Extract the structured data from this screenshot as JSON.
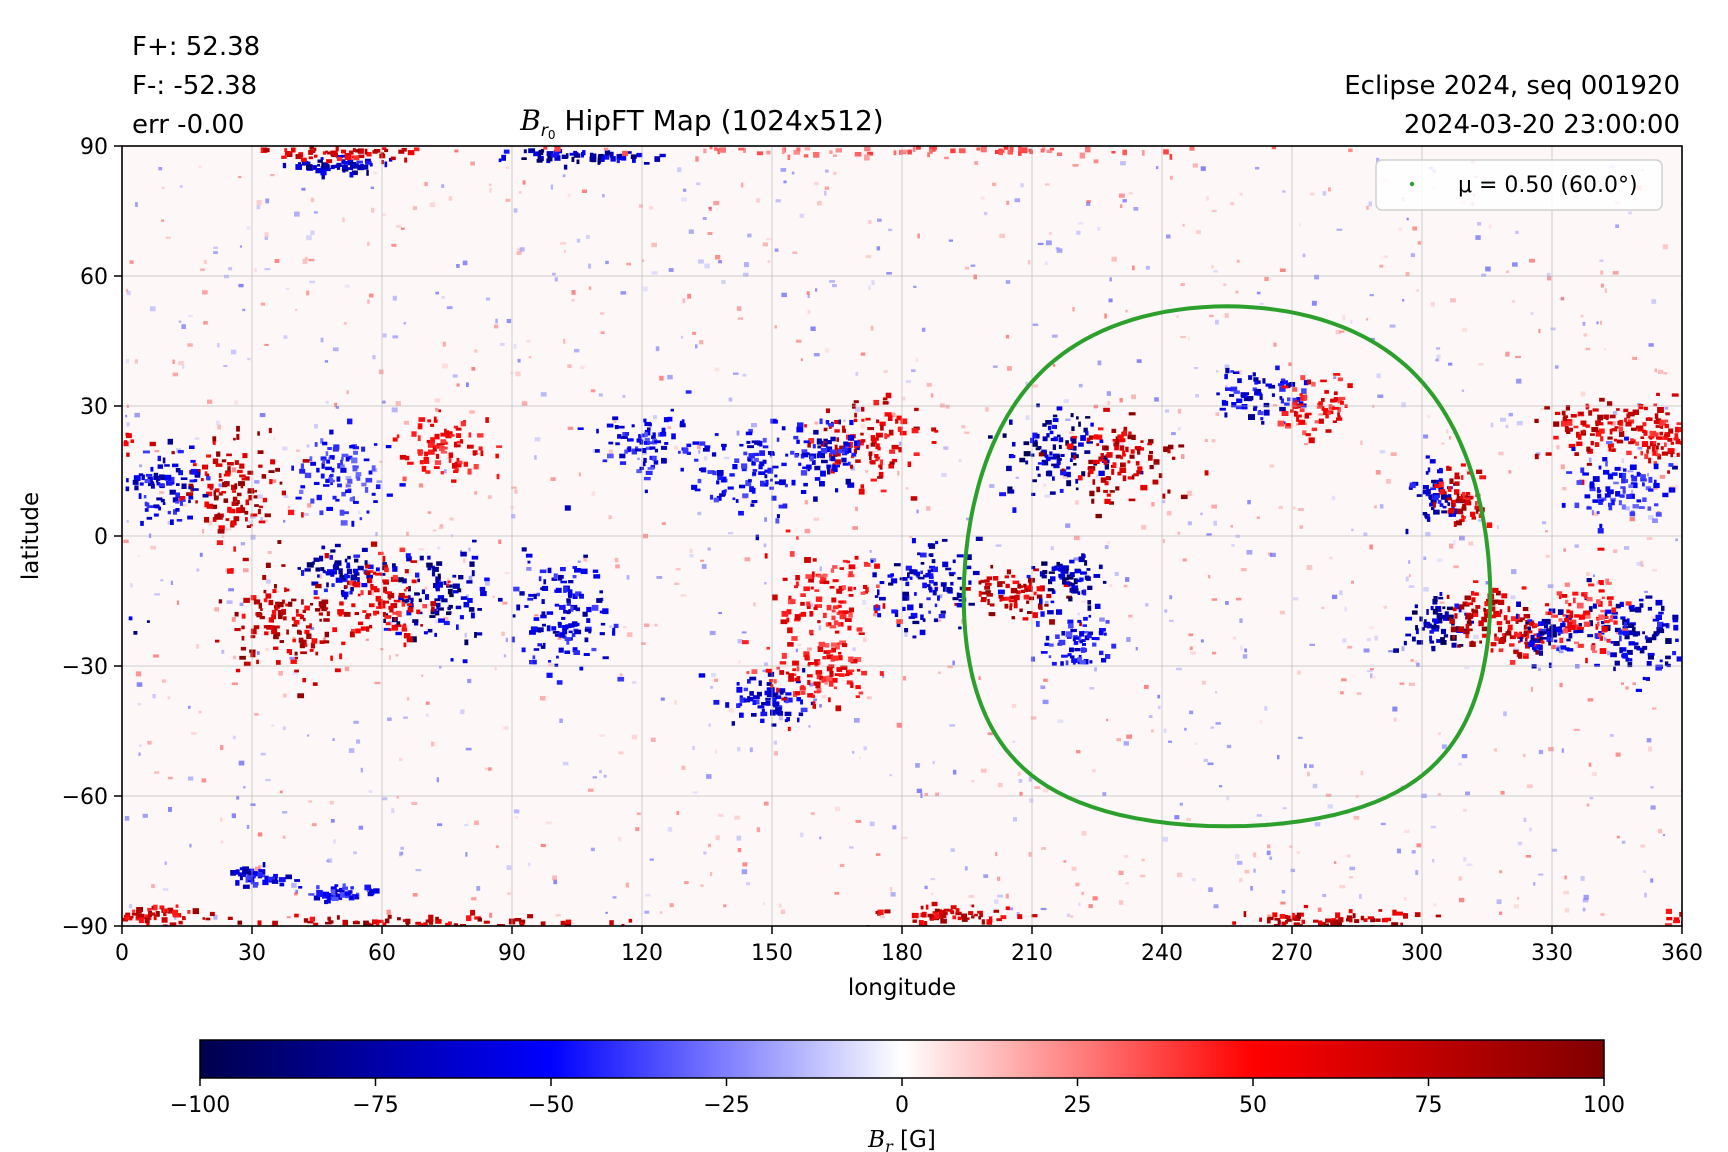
{
  "header": {
    "flux_plus": "F+: 52.38",
    "flux_minus": "F-: -52.38",
    "error": "err -0.00",
    "seq": "Eclipse 2024, seq 001920",
    "datetime": "2024-03-20 23:00:00"
  },
  "chart_data": {
    "type": "heatmap",
    "title": {
      "symbol": "B",
      "sub": "r",
      "subsub": "0",
      "text": " HipFT Map (1024x512)"
    },
    "xlabel": "longitude",
    "ylabel": "latitude",
    "xlim": [
      0,
      360
    ],
    "ylim": [
      -90,
      90
    ],
    "xticks": [
      0,
      30,
      60,
      90,
      120,
      150,
      180,
      210,
      240,
      270,
      300,
      330,
      360
    ],
    "yticks": [
      90,
      60,
      30,
      0,
      -30,
      -60,
      -90
    ],
    "ytick_labels": [
      "90",
      "60",
      "30",
      "0",
      "−30",
      "−60",
      "−90"
    ],
    "grid": true,
    "grid_resolution": "1024x512",
    "colormap": "seismic",
    "colorbar": {
      "range": [
        -100,
        100
      ],
      "ticks": [
        -100,
        -75,
        -50,
        -25,
        0,
        25,
        50,
        75,
        100
      ],
      "tick_labels": [
        "−100",
        "−75",
        "−50",
        "−25",
        "0",
        "25",
        "50",
        "75",
        "100"
      ],
      "label_symbol": "B",
      "label_sub": "r",
      "label_unit": " [G]"
    },
    "legend": {
      "placement": "top-right",
      "entry": "μ = 0.50 (60.0°)",
      "color": "#2ca02c"
    },
    "mu_contour": {
      "mu": 0.5,
      "angle_deg": 60.0,
      "center_lon": 255,
      "center_lat": -7,
      "radius_deg": 60.0
    },
    "regions": [
      {
        "lon": 215,
        "lat": 20,
        "polarity": "negative",
        "peak": -100,
        "spread_lon": 6,
        "spread_lat": 5
      },
      {
        "lon": 230,
        "lat": 18,
        "polarity": "positive",
        "peak": 100,
        "spread_lon": 6,
        "spread_lat": 5
      },
      {
        "lon": 205,
        "lat": -13,
        "polarity": "positive",
        "peak": 100,
        "spread_lon": 5,
        "spread_lat": 3
      },
      {
        "lon": 218,
        "lat": -10,
        "polarity": "negative",
        "peak": -100,
        "spread_lon": 4,
        "spread_lat": 3
      },
      {
        "lon": 220,
        "lat": -24,
        "polarity": "negative",
        "peak": -70,
        "spread_lon": 4,
        "spread_lat": 3
      },
      {
        "lon": 303,
        "lat": 10,
        "polarity": "negative",
        "peak": -90,
        "spread_lon": 3,
        "spread_lat": 3
      },
      {
        "lon": 309,
        "lat": 10,
        "polarity": "positive",
        "peak": 90,
        "spread_lon": 3,
        "spread_lat": 3
      },
      {
        "lon": 303,
        "lat": -20,
        "polarity": "negative",
        "peak": -100,
        "spread_lon": 4,
        "spread_lat": 3
      },
      {
        "lon": 313,
        "lat": -18,
        "polarity": "positive",
        "peak": 100,
        "spread_lon": 4,
        "spread_lat": 3
      },
      {
        "lon": 322,
        "lat": -22,
        "polarity": "positive",
        "peak": 90,
        "spread_lon": 4,
        "spread_lat": 3
      },
      {
        "lon": 328,
        "lat": -22,
        "polarity": "negative",
        "peak": -90,
        "spread_lon": 3,
        "spread_lat": 3
      },
      {
        "lon": 172,
        "lat": 22,
        "polarity": "positive",
        "peak": 90,
        "spread_lon": 6,
        "spread_lat": 5
      },
      {
        "lon": 162,
        "lat": 20,
        "polarity": "negative",
        "peak": -80,
        "spread_lon": 4,
        "spread_lat": 4
      },
      {
        "lon": 145,
        "lat": 15,
        "polarity": "negative",
        "peak": -70,
        "spread_lon": 6,
        "spread_lat": 5
      },
      {
        "lon": 185,
        "lat": -11,
        "polarity": "negative",
        "peak": -90,
        "spread_lon": 6,
        "spread_lat": 5
      },
      {
        "lon": 163,
        "lat": -15,
        "polarity": "positive",
        "peak": 70,
        "spread_lon": 6,
        "spread_lat": 6
      },
      {
        "lon": 150,
        "lat": -38,
        "polarity": "negative",
        "peak": -80,
        "spread_lon": 5,
        "spread_lat": 3
      },
      {
        "lon": 160,
        "lat": -32,
        "polarity": "positive",
        "peak": 70,
        "spread_lon": 6,
        "spread_lat": 4
      },
      {
        "lon": 120,
        "lat": 22,
        "polarity": "negative",
        "peak": -70,
        "spread_lon": 5,
        "spread_lat": 4
      },
      {
        "lon": 100,
        "lat": -18,
        "polarity": "negative",
        "peak": -80,
        "spread_lon": 6,
        "spread_lat": 7
      },
      {
        "lon": 72,
        "lat": -13,
        "polarity": "negative",
        "peak": -100,
        "spread_lon": 6,
        "spread_lat": 5
      },
      {
        "lon": 50,
        "lat": -8,
        "polarity": "negative",
        "peak": -90,
        "spread_lon": 4,
        "spread_lat": 3
      },
      {
        "lon": 38,
        "lat": -20,
        "polarity": "positive",
        "peak": 100,
        "spread_lon": 7,
        "spread_lat": 6
      },
      {
        "lon": 60,
        "lat": -14,
        "polarity": "positive",
        "peak": 80,
        "spread_lon": 5,
        "spread_lat": 5
      },
      {
        "lon": 25,
        "lat": 10,
        "polarity": "positive",
        "peak": 100,
        "spread_lon": 6,
        "spread_lat": 6
      },
      {
        "lon": 10,
        "lat": 12,
        "polarity": "negative",
        "peak": -80,
        "spread_lon": 5,
        "spread_lat": 4
      },
      {
        "lon": 50,
        "lat": 15,
        "polarity": "negative",
        "peak": -60,
        "spread_lon": 5,
        "spread_lat": 5
      },
      {
        "lon": 75,
        "lat": 20,
        "polarity": "positive",
        "peak": 70,
        "spread_lon": 5,
        "spread_lat": 4
      },
      {
        "lon": 262,
        "lat": 33,
        "polarity": "negative",
        "peak": -80,
        "spread_lon": 5,
        "spread_lat": 3
      },
      {
        "lon": 275,
        "lat": 30,
        "polarity": "positive",
        "peak": 70,
        "spread_lon": 4,
        "spread_lat": 3
      },
      {
        "lon": 340,
        "lat": 25,
        "polarity": "positive",
        "peak": 90,
        "spread_lon": 7,
        "spread_lat": 4
      },
      {
        "lon": 355,
        "lat": 23,
        "polarity": "positive",
        "peak": 80,
        "spread_lon": 4,
        "spread_lat": 3
      },
      {
        "lon": 345,
        "lat": 12,
        "polarity": "negative",
        "peak": -60,
        "spread_lon": 5,
        "spread_lat": 4
      },
      {
        "lon": 350,
        "lat": -22,
        "polarity": "negative",
        "peak": -90,
        "spread_lon": 6,
        "spread_lat": 5
      },
      {
        "lon": 337,
        "lat": -18,
        "polarity": "positive",
        "peak": 60,
        "spread_lon": 4,
        "spread_lat": 4
      },
      {
        "lon": 105,
        "lat": 88,
        "polarity": "negative",
        "peak": -100,
        "spread_lon": 9,
        "spread_lat": 1
      },
      {
        "lon": 50,
        "lat": 86,
        "polarity": "negative",
        "peak": -90,
        "spread_lon": 5,
        "spread_lat": 1
      },
      {
        "lon": 50,
        "lat": 89,
        "polarity": "positive",
        "peak": 90,
        "spread_lon": 9,
        "spread_lat": 1
      },
      {
        "lon": 180,
        "lat": 90,
        "polarity": "positive",
        "peak": 40,
        "spread_lon": 40,
        "spread_lat": 1
      },
      {
        "lon": 60,
        "lat": -89,
        "polarity": "positive",
        "peak": 100,
        "spread_lon": 25,
        "spread_lat": 1
      },
      {
        "lon": 190,
        "lat": -87,
        "polarity": "positive",
        "peak": 100,
        "spread_lon": 8,
        "spread_lat": 1
      },
      {
        "lon": 280,
        "lat": -88,
        "polarity": "positive",
        "peak": 100,
        "spread_lon": 10,
        "spread_lat": 1
      },
      {
        "lon": 5,
        "lat": -87,
        "polarity": "positive",
        "peak": 90,
        "spread_lon": 6,
        "spread_lat": 1
      },
      {
        "lon": 30,
        "lat": -78,
        "polarity": "negative",
        "peak": -80,
        "spread_lon": 3,
        "spread_lat": 1
      },
      {
        "lon": 48,
        "lat": -82,
        "polarity": "negative",
        "peak": -70,
        "spread_lon": 4,
        "spread_lat": 1
      }
    ]
  }
}
